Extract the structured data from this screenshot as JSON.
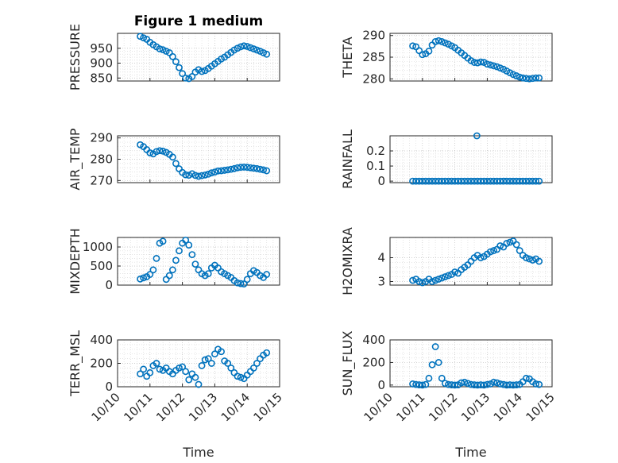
{
  "chart_data": [
    {
      "type": "scatter",
      "title": "Figure 1 medium",
      "ylabel": "PRESSURE",
      "ylim": [
        840,
        1000
      ],
      "yticks": [
        "850",
        "900",
        "950"
      ],
      "x": [
        0.7,
        0.8,
        0.9,
        1.0,
        1.1,
        1.2,
        1.3,
        1.4,
        1.5,
        1.6,
        1.7,
        1.8,
        1.9,
        2.0,
        2.1,
        2.2,
        2.3,
        2.4,
        2.5,
        2.6,
        2.7,
        2.8,
        2.9,
        3.0,
        3.1,
        3.2,
        3.3,
        3.4,
        3.5,
        3.6,
        3.7,
        3.8,
        3.9,
        4.0,
        4.1,
        4.2,
        4.3,
        4.4,
        4.5,
        4.6
      ],
      "y": [
        990,
        985,
        980,
        970,
        962,
        955,
        948,
        945,
        940,
        935,
        922,
        905,
        885,
        865,
        850,
        848,
        855,
        870,
        878,
        872,
        875,
        882,
        890,
        898,
        906,
        914,
        920,
        928,
        936,
        944,
        950,
        955,
        958,
        956,
        952,
        948,
        944,
        940,
        935,
        930
      ]
    },
    {
      "type": "scatter",
      "title": "",
      "ylabel": "THETA",
      "ylim": [
        279.5,
        290.5
      ],
      "yticks": [
        "280",
        "285",
        "290"
      ],
      "x": [
        0.7,
        0.8,
        0.9,
        1.0,
        1.1,
        1.2,
        1.3,
        1.4,
        1.5,
        1.6,
        1.7,
        1.8,
        1.9,
        2.0,
        2.1,
        2.2,
        2.3,
        2.4,
        2.5,
        2.6,
        2.7,
        2.8,
        2.9,
        3.0,
        3.1,
        3.2,
        3.3,
        3.4,
        3.5,
        3.6,
        3.7,
        3.8,
        3.9,
        4.0,
        4.1,
        4.2,
        4.3,
        4.4,
        4.5,
        4.6
      ],
      "y": [
        287.6,
        287.4,
        286.5,
        285.6,
        285.8,
        286.4,
        287.8,
        288.6,
        288.8,
        288.6,
        288.3,
        288.0,
        287.6,
        287.2,
        286.6,
        286.0,
        285.4,
        284.8,
        284.2,
        283.8,
        283.7,
        283.9,
        283.8,
        283.4,
        283.2,
        283.0,
        282.8,
        282.5,
        282.2,
        281.8,
        281.4,
        281.0,
        280.7,
        280.4,
        280.2,
        280.1,
        280.0,
        280.1,
        280.2,
        280.2
      ]
    },
    {
      "type": "scatter",
      "title": "",
      "ylabel": "AIR_TEMP",
      "ylim": [
        269,
        291
      ],
      "yticks": [
        "270",
        "280",
        "290"
      ],
      "x": [
        0.7,
        0.8,
        0.9,
        1.0,
        1.1,
        1.2,
        1.3,
        1.4,
        1.5,
        1.6,
        1.7,
        1.8,
        1.9,
        2.0,
        2.1,
        2.2,
        2.3,
        2.4,
        2.5,
        2.6,
        2.7,
        2.8,
        2.9,
        3.0,
        3.1,
        3.2,
        3.3,
        3.4,
        3.5,
        3.6,
        3.7,
        3.8,
        3.9,
        4.0,
        4.1,
        4.2,
        4.3,
        4.4,
        4.5,
        4.6
      ],
      "y": [
        286.8,
        285.9,
        284.5,
        283.0,
        282.5,
        283.6,
        284.0,
        283.8,
        283.2,
        282.3,
        281.0,
        278.0,
        275.5,
        273.8,
        272.7,
        272.5,
        273.2,
        272.4,
        272.0,
        272.3,
        272.6,
        273.0,
        273.6,
        274.0,
        274.5,
        274.6,
        274.8,
        275.0,
        275.3,
        275.6,
        276.0,
        276.2,
        276.3,
        276.2,
        276.0,
        275.8,
        275.6,
        275.3,
        275.0,
        274.6
      ]
    },
    {
      "type": "scatter",
      "title": "",
      "ylabel": "RAINFALL",
      "ylim": [
        -0.01,
        0.3
      ],
      "yticks": [
        "0",
        "0.1",
        "0.2"
      ],
      "x": [
        0.7,
        0.8,
        0.9,
        1.0,
        1.1,
        1.2,
        1.3,
        1.4,
        1.5,
        1.6,
        1.7,
        1.8,
        1.9,
        2.0,
        2.1,
        2.2,
        2.3,
        2.4,
        2.5,
        2.6,
        2.7,
        2.8,
        2.9,
        3.0,
        3.1,
        3.2,
        3.3,
        3.4,
        3.5,
        3.6,
        3.7,
        3.8,
        3.9,
        4.0,
        4.1,
        4.2,
        4.3,
        4.4,
        4.5,
        4.6,
        2.68
      ],
      "y": [
        0,
        0,
        0,
        0,
        0,
        0,
        0,
        0,
        0,
        0,
        0,
        0,
        0,
        0,
        0,
        0,
        0,
        0,
        0,
        0,
        0,
        0,
        0,
        0,
        0,
        0,
        0,
        0,
        0,
        0,
        0,
        0,
        0,
        0,
        0,
        0,
        0,
        0,
        0,
        0,
        0.3
      ]
    },
    {
      "type": "scatter",
      "title": "",
      "ylabel": "MIXDEPTH",
      "ylim": [
        0,
        1250
      ],
      "yticks": [
        "0",
        "500",
        "1000"
      ],
      "x": [
        0.7,
        0.8,
        0.9,
        1.0,
        1.1,
        1.2,
        1.3,
        1.4,
        1.5,
        1.6,
        1.7,
        1.8,
        1.9,
        2.0,
        2.1,
        2.2,
        2.3,
        2.4,
        2.5,
        2.6,
        2.7,
        2.8,
        2.9,
        3.0,
        3.1,
        3.2,
        3.3,
        3.4,
        3.5,
        3.6,
        3.7,
        3.8,
        3.9,
        4.0,
        4.1,
        4.2,
        4.3,
        4.4,
        4.5,
        4.6
      ],
      "y": [
        160,
        190,
        220,
        280,
        400,
        700,
        1100,
        1150,
        150,
        250,
        400,
        650,
        900,
        1100,
        1180,
        1050,
        800,
        550,
        400,
        300,
        250,
        300,
        450,
        520,
        450,
        350,
        300,
        250,
        200,
        120,
        60,
        40,
        30,
        150,
        300,
        380,
        330,
        250,
        200,
        280
      ]
    },
    {
      "type": "scatter",
      "title": "",
      "ylabel": "H2OMIXRA",
      "ylim": [
        2.85,
        4.85
      ],
      "yticks": [
        "3",
        "4"
      ],
      "x": [
        0.7,
        0.8,
        0.9,
        1.0,
        1.1,
        1.2,
        1.3,
        1.4,
        1.5,
        1.6,
        1.7,
        1.8,
        1.9,
        2.0,
        2.1,
        2.2,
        2.3,
        2.4,
        2.5,
        2.6,
        2.7,
        2.8,
        2.9,
        3.0,
        3.1,
        3.2,
        3.3,
        3.4,
        3.5,
        3.6,
        3.7,
        3.8,
        3.9,
        4.0,
        4.1,
        4.2,
        4.3,
        4.4,
        4.5,
        4.6
      ],
      "y": [
        3.05,
        3.1,
        3.0,
        2.95,
        3.0,
        3.1,
        3.0,
        3.05,
        3.1,
        3.15,
        3.2,
        3.25,
        3.3,
        3.4,
        3.35,
        3.5,
        3.6,
        3.7,
        3.85,
        4.0,
        4.1,
        4.0,
        4.05,
        4.15,
        4.25,
        4.3,
        4.35,
        4.5,
        4.45,
        4.6,
        4.65,
        4.7,
        4.55,
        4.3,
        4.1,
        4.0,
        3.95,
        3.9,
        3.95,
        3.85
      ]
    },
    {
      "type": "scatter",
      "title": "",
      "ylabel": "TERR_MSL",
      "ylim": [
        0,
        400
      ],
      "yticks": [
        "0",
        "200",
        "400"
      ],
      "x": [
        0.7,
        0.8,
        0.9,
        1.0,
        1.1,
        1.2,
        1.3,
        1.4,
        1.5,
        1.6,
        1.7,
        1.8,
        1.9,
        2.0,
        2.1,
        2.2,
        2.3,
        2.4,
        2.5,
        2.6,
        2.7,
        2.8,
        2.9,
        3.0,
        3.1,
        3.2,
        3.3,
        3.4,
        3.5,
        3.6,
        3.7,
        3.8,
        3.9,
        4.0,
        4.1,
        4.2,
        4.3,
        4.4,
        4.5,
        4.6
      ],
      "y": [
        110,
        150,
        90,
        120,
        180,
        200,
        150,
        140,
        160,
        130,
        110,
        140,
        160,
        170,
        130,
        60,
        110,
        80,
        20,
        180,
        230,
        240,
        200,
        280,
        320,
        300,
        220,
        200,
        160,
        120,
        90,
        80,
        70,
        100,
        130,
        160,
        200,
        240,
        270,
        290
      ]
    },
    {
      "type": "scatter",
      "title": "",
      "ylabel": "SUN_FLUX",
      "ylim": [
        -15,
        400
      ],
      "yticks": [
        "0",
        "200",
        "400"
      ],
      "x": [
        0.7,
        0.8,
        0.9,
        1.0,
        1.1,
        1.2,
        1.3,
        1.4,
        1.5,
        1.6,
        1.7,
        1.8,
        1.9,
        2.0,
        2.1,
        2.2,
        2.3,
        2.4,
        2.5,
        2.6,
        2.7,
        2.8,
        2.9,
        3.0,
        3.1,
        3.2,
        3.3,
        3.4,
        3.5,
        3.6,
        3.7,
        3.8,
        3.9,
        4.0,
        4.1,
        4.2,
        4.3,
        4.4,
        4.5,
        4.6
      ],
      "y": [
        10,
        5,
        2,
        0,
        5,
        60,
        180,
        340,
        200,
        60,
        15,
        5,
        2,
        0,
        2,
        20,
        25,
        15,
        5,
        2,
        0,
        2,
        0,
        5,
        10,
        25,
        20,
        10,
        5,
        0,
        2,
        0,
        2,
        5,
        30,
        60,
        55,
        30,
        10,
        5
      ]
    }
  ],
  "x_axis": {
    "label": "Time",
    "xlim": [
      0,
      5
    ],
    "ticks": [
      "10/10",
      "10/11",
      "10/12",
      "10/13",
      "10/14",
      "10/15"
    ]
  },
  "colors": {
    "marker": "#0072BD",
    "axis": "#262626"
  }
}
